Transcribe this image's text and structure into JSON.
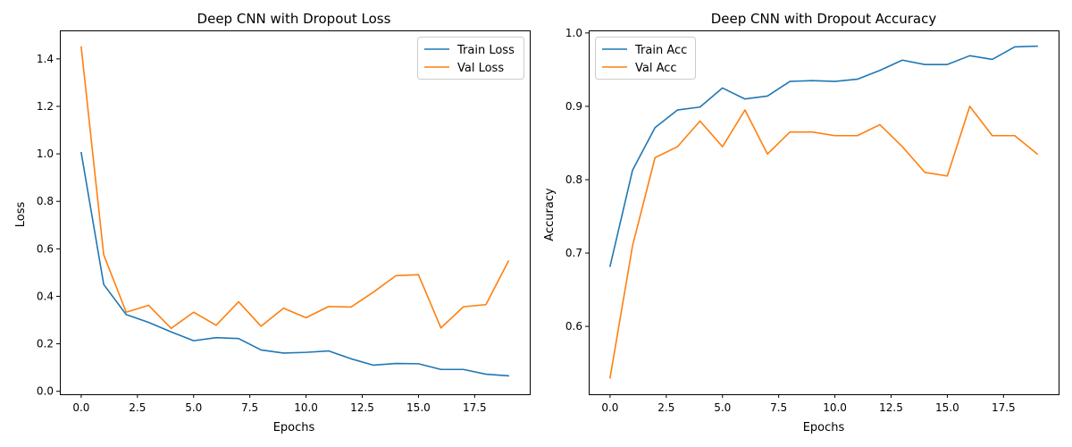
{
  "colors": {
    "train": "#1f77b4",
    "val": "#ff7f0e"
  },
  "chart_data": [
    {
      "type": "line",
      "title": "Deep CNN with Dropout Loss",
      "xlabel": "Epochs",
      "ylabel": "Loss",
      "xlim": [
        -0.95,
        19.95
      ],
      "ylim": [
        -0.0125,
        1.52
      ],
      "xticks": [
        0,
        2.5,
        5,
        7.5,
        10,
        12.5,
        15,
        17.5
      ],
      "xtick_labels": [
        "0.0",
        "2.5",
        "5.0",
        "7.5",
        "10.0",
        "12.5",
        "15.0",
        "17.5"
      ],
      "yticks": [
        0,
        0.2,
        0.4,
        0.6,
        0.8,
        1.0,
        1.2,
        1.4
      ],
      "ytick_labels": [
        "0.0",
        "0.2",
        "0.4",
        "0.6",
        "0.8",
        "1.0",
        "1.2",
        "1.4"
      ],
      "legend_position": "top-right",
      "x": [
        0,
        1,
        2,
        3,
        4,
        5,
        6,
        7,
        8,
        9,
        10,
        11,
        12,
        13,
        14,
        15,
        16,
        17,
        18,
        19
      ],
      "series": [
        {
          "name": "Train Loss",
          "color_key": "train",
          "values": [
            1.005,
            0.45,
            0.323,
            0.29,
            0.25,
            0.213,
            0.226,
            0.222,
            0.174,
            0.161,
            0.164,
            0.17,
            0.137,
            0.11,
            0.117,
            0.116,
            0.092,
            0.092,
            0.072,
            0.065
          ]
        },
        {
          "name": "Val Loss",
          "color_key": "val",
          "values": [
            1.45,
            0.575,
            0.333,
            0.362,
            0.265,
            0.333,
            0.278,
            0.377,
            0.274,
            0.35,
            0.31,
            0.357,
            0.355,
            0.418,
            0.487,
            0.491,
            0.267,
            0.356,
            0.365,
            0.548
          ]
        }
      ]
    },
    {
      "type": "line",
      "title": "Deep CNN with Dropout Accuracy",
      "xlabel": "Epochs",
      "ylabel": "Accuracy",
      "xlim": [
        -0.95,
        19.95
      ],
      "ylim": [
        0.5075,
        1.0035
      ],
      "xticks": [
        0,
        2.5,
        5,
        7.5,
        10,
        12.5,
        15,
        17.5
      ],
      "xtick_labels": [
        "0.0",
        "2.5",
        "5.0",
        "7.5",
        "10.0",
        "12.5",
        "15.0",
        "17.5"
      ],
      "yticks": [
        0.6,
        0.7,
        0.8,
        0.9,
        1.0
      ],
      "ytick_labels": [
        "0.6",
        "0.7",
        "0.8",
        "0.9",
        "1.0"
      ],
      "legend_position": "top-left",
      "x": [
        0,
        1,
        2,
        3,
        4,
        5,
        6,
        7,
        8,
        9,
        10,
        11,
        12,
        13,
        14,
        15,
        16,
        17,
        18,
        19
      ],
      "series": [
        {
          "name": "Train Acc",
          "color_key": "train",
          "values": [
            0.682,
            0.813,
            0.871,
            0.895,
            0.899,
            0.925,
            0.91,
            0.914,
            0.934,
            0.935,
            0.934,
            0.937,
            0.949,
            0.963,
            0.957,
            0.957,
            0.969,
            0.964,
            0.981,
            0.982
          ]
        },
        {
          "name": "Val Acc",
          "color_key": "val",
          "values": [
            0.53,
            0.71,
            0.83,
            0.845,
            0.88,
            0.845,
            0.895,
            0.835,
            0.865,
            0.865,
            0.86,
            0.86,
            0.875,
            0.845,
            0.81,
            0.805,
            0.9,
            0.86,
            0.86,
            0.835
          ]
        }
      ]
    }
  ]
}
